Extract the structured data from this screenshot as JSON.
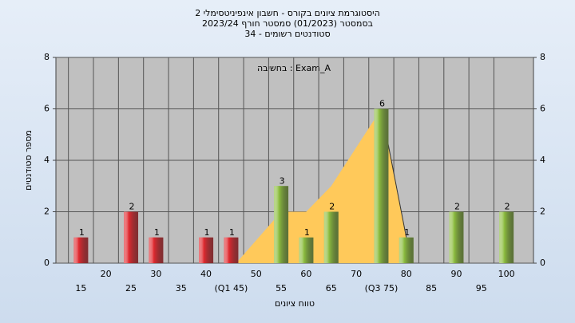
{
  "chart_data": {
    "type": "bar",
    "title": [
      "היסטוגרמת ציונים בקורס - חשבון אינפיניטסימלי 2",
      "בסמסטר (01/2023) סמסטר חורף 2023/24",
      "סטודנטים רשומים - 34"
    ],
    "annotation": "בחשיבה : Exam_A",
    "xlabel": "טווח ציונים",
    "ylabel": "מספר סטודנטים",
    "x": [
      15,
      25,
      30,
      40,
      45,
      55,
      60,
      65,
      75,
      80,
      90,
      100
    ],
    "values": [
      1,
      2,
      1,
      1,
      1,
      3,
      1,
      2,
      6,
      1,
      2,
      2
    ],
    "colors": [
      "#e0292f",
      "#e0292f",
      "#e0292f",
      "#e0292f",
      "#e0292f",
      "#8cbd3f",
      "#8cbd3f",
      "#8cbd3f",
      "#8cbd3f",
      "#8cbd3f",
      "#8cbd3f",
      "#8cbd3f"
    ],
    "area": {
      "color": "#ffc95a",
      "x": [
        46,
        55,
        60,
        65,
        75,
        80
      ],
      "values": [
        0,
        2,
        2,
        3,
        6,
        1
      ]
    },
    "xlim": [
      10,
      105.4
    ],
    "xticks": [
      15,
      20,
      25,
      30,
      35,
      40,
      {
        "value": 45,
        "label": "(Q1 45)"
      },
      50,
      55,
      60,
      65,
      70,
      {
        "value": 75,
        "label": "(Q3 75)"
      },
      80,
      85,
      90,
      95,
      100
    ],
    "ylim": [
      0,
      8
    ],
    "yticks": [
      0,
      2,
      4,
      6,
      8
    ],
    "grid": true
  }
}
